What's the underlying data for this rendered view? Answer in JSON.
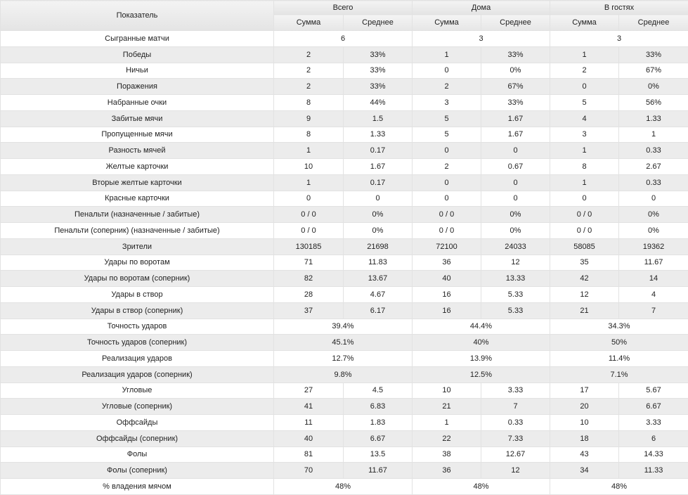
{
  "header": {
    "label": "Показатель",
    "groups": [
      "Всего",
      "Дома",
      "В гостях"
    ],
    "sub": [
      "Сумма",
      "Среднее"
    ]
  },
  "rows": [
    {
      "label": "Сыгранные матчи",
      "merged": true,
      "values": [
        "6",
        "3",
        "3"
      ]
    },
    {
      "label": "Победы",
      "values": [
        "2",
        "33%",
        "1",
        "33%",
        "1",
        "33%"
      ]
    },
    {
      "label": "Ничьи",
      "values": [
        "2",
        "33%",
        "0",
        "0%",
        "2",
        "67%"
      ]
    },
    {
      "label": "Поражения",
      "values": [
        "2",
        "33%",
        "2",
        "67%",
        "0",
        "0%"
      ]
    },
    {
      "label": "Набранные очки",
      "values": [
        "8",
        "44%",
        "3",
        "33%",
        "5",
        "56%"
      ]
    },
    {
      "label": "Забитые мячи",
      "values": [
        "9",
        "1.5",
        "5",
        "1.67",
        "4",
        "1.33"
      ]
    },
    {
      "label": "Пропущенные мячи",
      "values": [
        "8",
        "1.33",
        "5",
        "1.67",
        "3",
        "1"
      ]
    },
    {
      "label": "Разность мячей",
      "values": [
        "1",
        "0.17",
        "0",
        "0",
        "1",
        "0.33"
      ]
    },
    {
      "label": "Желтые карточки",
      "values": [
        "10",
        "1.67",
        "2",
        "0.67",
        "8",
        "2.67"
      ]
    },
    {
      "label": "Вторые желтые карточки",
      "values": [
        "1",
        "0.17",
        "0",
        "0",
        "1",
        "0.33"
      ]
    },
    {
      "label": "Красные карточки",
      "values": [
        "0",
        "0",
        "0",
        "0",
        "0",
        "0"
      ]
    },
    {
      "label": "Пенальти (назначенные / забитые)",
      "values": [
        "0 / 0",
        "0%",
        "0 / 0",
        "0%",
        "0 / 0",
        "0%"
      ]
    },
    {
      "label": "Пенальти (соперник) (назначенные / забитые)",
      "values": [
        "0 / 0",
        "0%",
        "0 / 0",
        "0%",
        "0 / 0",
        "0%"
      ]
    },
    {
      "label": "Зрители",
      "values": [
        "130185",
        "21698",
        "72100",
        "24033",
        "58085",
        "19362"
      ]
    },
    {
      "label": "Удары по воротам",
      "values": [
        "71",
        "11.83",
        "36",
        "12",
        "35",
        "11.67"
      ]
    },
    {
      "label": "Удары по воротам (соперник)",
      "values": [
        "82",
        "13.67",
        "40",
        "13.33",
        "42",
        "14"
      ]
    },
    {
      "label": "Удары в створ",
      "values": [
        "28",
        "4.67",
        "16",
        "5.33",
        "12",
        "4"
      ]
    },
    {
      "label": "Удары в створ (соперник)",
      "values": [
        "37",
        "6.17",
        "16",
        "5.33",
        "21",
        "7"
      ]
    },
    {
      "label": "Точность ударов",
      "merged": true,
      "values": [
        "39.4%",
        "44.4%",
        "34.3%"
      ]
    },
    {
      "label": "Точность ударов (соперник)",
      "merged": true,
      "values": [
        "45.1%",
        "40%",
        "50%"
      ]
    },
    {
      "label": "Реализация ударов",
      "merged": true,
      "values": [
        "12.7%",
        "13.9%",
        "11.4%"
      ]
    },
    {
      "label": "Реализация ударов (соперник)",
      "merged": true,
      "values": [
        "9.8%",
        "12.5%",
        "7.1%"
      ]
    },
    {
      "label": "Угловые",
      "values": [
        "27",
        "4.5",
        "10",
        "3.33",
        "17",
        "5.67"
      ]
    },
    {
      "label": "Угловые (соперник)",
      "values": [
        "41",
        "6.83",
        "21",
        "7",
        "20",
        "6.67"
      ]
    },
    {
      "label": "Оффсайды",
      "values": [
        "11",
        "1.83",
        "1",
        "0.33",
        "10",
        "3.33"
      ]
    },
    {
      "label": "Оффсайды (соперник)",
      "values": [
        "40",
        "6.67",
        "22",
        "7.33",
        "18",
        "6"
      ]
    },
    {
      "label": "Фолы",
      "values": [
        "81",
        "13.5",
        "38",
        "12.67",
        "43",
        "14.33"
      ]
    },
    {
      "label": "Фолы (соперник)",
      "values": [
        "70",
        "11.67",
        "36",
        "12",
        "34",
        "11.33"
      ]
    },
    {
      "label": "% владения мячом",
      "merged": true,
      "values": [
        "48%",
        "48%",
        "48%"
      ]
    }
  ]
}
